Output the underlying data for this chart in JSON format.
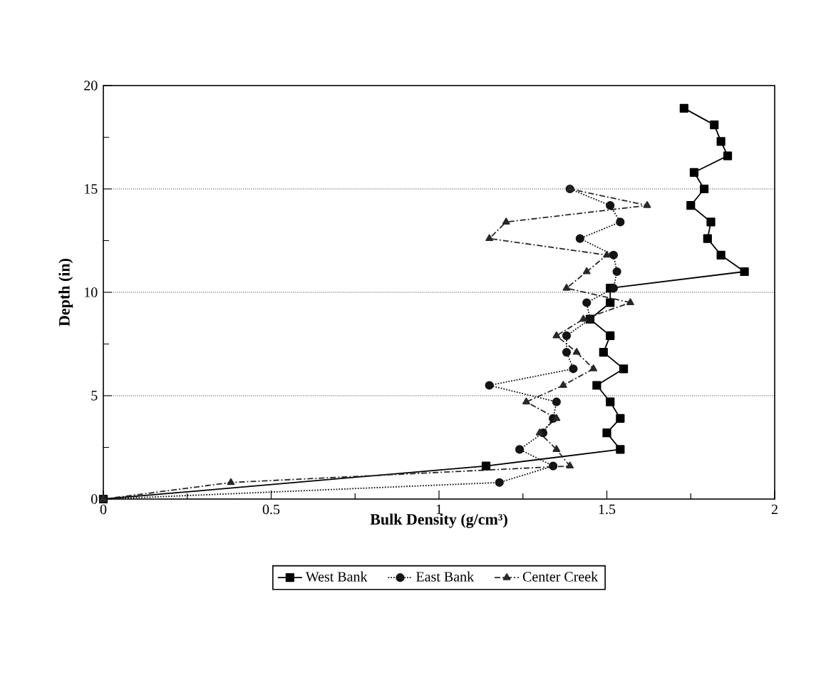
{
  "chart_data": {
    "type": "line",
    "xlabel": "Bulk Density (g/cm³)",
    "ylabel": "Depth (in)",
    "xlim": [
      0,
      2
    ],
    "xticks": [
      0,
      {
        "value": 0.25,
        "label": null
      },
      0.5,
      {
        "value": 0.75,
        "label": null
      },
      1,
      {
        "value": 1.25,
        "label": null
      },
      1.5,
      {
        "value": 1.75,
        "label": null
      },
      2
    ],
    "ylim": [
      0,
      20
    ],
    "yticks": [
      0,
      {
        "value": 2.5,
        "label": null
      },
      5,
      {
        "value": 7.5,
        "label": null
      },
      10,
      {
        "value": 12.5,
        "label": null
      },
      15,
      {
        "value": 17.5,
        "label": null
      },
      20
    ],
    "grid": "y",
    "legend": "bottom",
    "series": [
      {
        "name": "West Bank",
        "color": "#000000",
        "marker": "square",
        "line_style": "solid",
        "x": [
          0,
          1.14,
          1.54,
          1.5,
          1.54,
          1.51,
          1.47,
          1.55,
          1.49,
          1.51,
          1.45,
          1.51,
          1.51,
          1.91,
          1.84,
          1.8,
          1.81,
          1.75,
          1.79,
          1.76,
          1.86,
          1.84,
          1.82,
          1.73
        ],
        "values": [
          0,
          1.6,
          2.4,
          3.2,
          3.9,
          4.7,
          5.5,
          6.3,
          7.1,
          7.9,
          8.7,
          9.5,
          10.2,
          11.0,
          11.8,
          12.6,
          13.4,
          14.2,
          15.0,
          15.8,
          16.6,
          17.3,
          18.1,
          18.9
        ]
      },
      {
        "name": "East Bank",
        "color": "#141414",
        "marker": "circle",
        "line_style": "dotted",
        "x": [
          0,
          1.18,
          1.34,
          1.24,
          1.31,
          1.34,
          1.35,
          1.15,
          1.4,
          1.38,
          1.38,
          1.45,
          1.44,
          1.52,
          1.53,
          1.52,
          1.42,
          1.54,
          1.51,
          1.39
        ],
        "values": [
          0,
          0.8,
          1.6,
          2.4,
          3.2,
          3.9,
          4.7,
          5.5,
          6.3,
          7.1,
          7.9,
          8.7,
          9.5,
          10.2,
          11.0,
          11.8,
          12.6,
          13.4,
          14.2,
          15.0
        ]
      },
      {
        "name": "Center Creek",
        "color": "#282828",
        "marker": "triangle",
        "line_style": "dashed",
        "x": [
          0,
          0.38,
          1.39,
          1.35,
          1.3,
          1.35,
          1.26,
          1.37,
          1.46,
          1.41,
          1.35,
          1.43,
          1.57,
          1.38,
          1.44,
          1.5,
          1.15,
          1.2,
          1.62,
          1.39
        ],
        "values": [
          0,
          0.8,
          1.6,
          2.4,
          3.2,
          3.9,
          4.7,
          5.5,
          6.3,
          7.1,
          7.9,
          8.7,
          9.5,
          10.2,
          11.0,
          11.8,
          12.6,
          13.4,
          14.2,
          15.0
        ]
      }
    ]
  }
}
